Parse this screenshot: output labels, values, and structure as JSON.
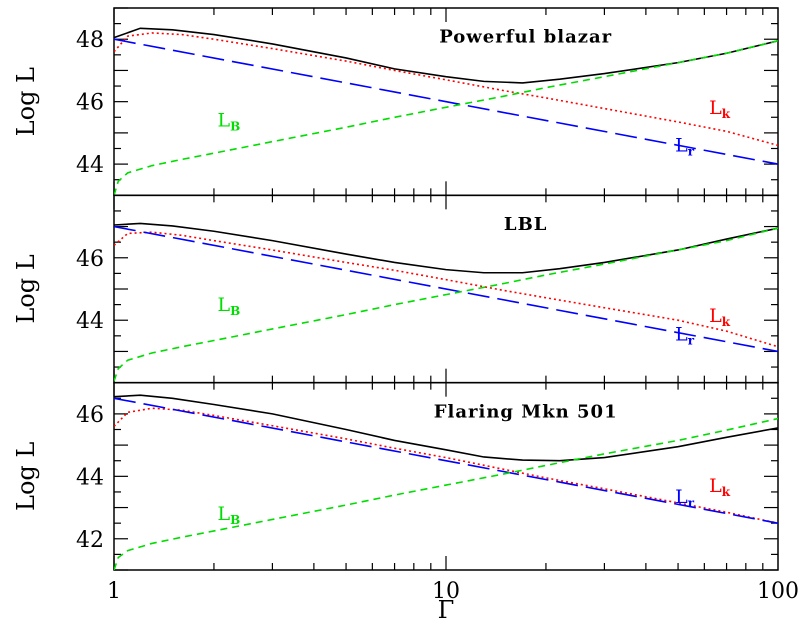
{
  "chart_data": {
    "type": "line",
    "xlabel": "Γ",
    "x_scale": "log",
    "xlim": [
      1,
      100
    ],
    "x_ticks": [
      {
        "value": 1,
        "label": "1"
      },
      {
        "value": 10,
        "label": "10"
      },
      {
        "value": 100,
        "label": "100"
      }
    ],
    "panels": [
      {
        "title": "Powerful blazar",
        "ylabel": "Log L",
        "ylim": [
          43.0,
          49.0
        ],
        "y_ticks": [
          {
            "value": 44,
            "label": "44"
          },
          {
            "value": 46,
            "label": "46"
          },
          {
            "value": 48,
            "label": "48"
          }
        ],
        "series": [
          {
            "key": "total",
            "color": "#000000",
            "dash": "",
            "points": [
              [
                1,
                48.05
              ],
              [
                1.2,
                48.35
              ],
              [
                1.5,
                48.3
              ],
              [
                2,
                48.15
              ],
              [
                3,
                47.85
              ],
              [
                5,
                47.4
              ],
              [
                7,
                47.05
              ],
              [
                10,
                46.8
              ],
              [
                13,
                46.65
              ],
              [
                17,
                46.6
              ],
              [
                22,
                46.72
              ],
              [
                30,
                46.9
              ],
              [
                50,
                47.25
              ],
              [
                70,
                47.55
              ],
              [
                100,
                47.95
              ]
            ]
          },
          {
            "key": "L_k",
            "label": "L",
            "subscript": "k",
            "color": "#ff0000",
            "dash": "2,3",
            "points": [
              [
                1,
                47.6
              ],
              [
                1.1,
                48.1
              ],
              [
                1.3,
                48.2
              ],
              [
                1.6,
                48.15
              ],
              [
                2,
                48.0
              ],
              [
                3,
                47.7
              ],
              [
                5,
                47.3
              ],
              [
                7,
                47.0
              ],
              [
                10,
                46.7
              ],
              [
                15,
                46.35
              ],
              [
                20,
                46.12
              ],
              [
                30,
                45.78
              ],
              [
                50,
                45.35
              ],
              [
                70,
                45.05
              ],
              [
                100,
                44.6
              ]
            ]
          },
          {
            "key": "L_r",
            "label": "L",
            "subscript": "r",
            "color": "#0000ff",
            "dash": "22,8",
            "points": [
              [
                1,
                48.0
              ],
              [
                100,
                44.0
              ]
            ]
          },
          {
            "key": "L_B",
            "label": "L",
            "subscript": "B",
            "color": "#00dd00",
            "dash": "7,5",
            "points": [
              [
                1,
                43.0
              ],
              [
                1.03,
                43.45
              ],
              [
                1.1,
                43.72
              ],
              [
                1.3,
                43.95
              ],
              [
                1.6,
                44.15
              ],
              [
                2,
                44.35
              ],
              [
                3,
                44.72
              ],
              [
                5,
                45.18
              ],
              [
                7,
                45.5
              ],
              [
                10,
                45.82
              ],
              [
                15,
                46.18
              ],
              [
                20,
                46.45
              ],
              [
                30,
                46.8
              ],
              [
                50,
                47.25
              ],
              [
                70,
                47.55
              ],
              [
                100,
                47.95
              ]
            ]
          }
        ],
        "labels": [
          {
            "key": "L_B",
            "x": 2.05,
            "y": 45.2
          },
          {
            "key": "L_k",
            "x": 62,
            "y": 45.6
          },
          {
            "key": "L_r",
            "x": 49,
            "y": 44.4
          }
        ]
      },
      {
        "title": "LBL",
        "ylabel": "Log L",
        "ylim": [
          42.0,
          48.0
        ],
        "y_ticks": [
          {
            "value": 44,
            "label": "44"
          },
          {
            "value": 46,
            "label": "46"
          }
        ],
        "series": [
          {
            "key": "total",
            "color": "#000000",
            "dash": "",
            "points": [
              [
                1,
                47.05
              ],
              [
                1.2,
                47.1
              ],
              [
                1.5,
                47.02
              ],
              [
                2,
                46.85
              ],
              [
                3,
                46.55
              ],
              [
                5,
                46.12
              ],
              [
                7,
                45.85
              ],
              [
                10,
                45.62
              ],
              [
                13,
                45.52
              ],
              [
                17,
                45.52
              ],
              [
                22,
                45.65
              ],
              [
                30,
                45.85
              ],
              [
                50,
                46.25
              ],
              [
                70,
                46.6
              ],
              [
                100,
                46.95
              ]
            ]
          },
          {
            "key": "L_k",
            "label": "L",
            "subscript": "k",
            "color": "#ff0000",
            "dash": "2,3",
            "points": [
              [
                1,
                46.4
              ],
              [
                1.1,
                46.78
              ],
              [
                1.3,
                46.82
              ],
              [
                1.6,
                46.72
              ],
              [
                2,
                46.55
              ],
              [
                3,
                46.25
              ],
              [
                5,
                45.85
              ],
              [
                7,
                45.6
              ],
              [
                10,
                45.3
              ],
              [
                15,
                44.95
              ],
              [
                20,
                44.72
              ],
              [
                30,
                44.4
              ],
              [
                50,
                44.0
              ],
              [
                70,
                43.65
              ],
              [
                100,
                43.15
              ]
            ]
          },
          {
            "key": "L_r",
            "label": "L",
            "subscript": "r",
            "color": "#0000ff",
            "dash": "22,8",
            "points": [
              [
                1,
                47.0
              ],
              [
                100,
                43.0
              ]
            ]
          },
          {
            "key": "L_B",
            "label": "L",
            "subscript": "B",
            "color": "#00dd00",
            "dash": "7,5",
            "points": [
              [
                1,
                42.05
              ],
              [
                1.03,
                42.45
              ],
              [
                1.1,
                42.72
              ],
              [
                1.3,
                42.95
              ],
              [
                1.6,
                43.15
              ],
              [
                2,
                43.35
              ],
              [
                3,
                43.72
              ],
              [
                5,
                44.18
              ],
              [
                7,
                44.5
              ],
              [
                10,
                44.82
              ],
              [
                15,
                45.18
              ],
              [
                20,
                45.45
              ],
              [
                30,
                45.8
              ],
              [
                50,
                46.25
              ],
              [
                70,
                46.55
              ],
              [
                100,
                46.95
              ]
            ]
          }
        ],
        "labels": [
          {
            "key": "L_B",
            "x": 2.05,
            "y": 44.3
          },
          {
            "key": "L_k",
            "x": 62,
            "y": 43.95
          },
          {
            "key": "L_r",
            "x": 49,
            "y": 43.35
          }
        ]
      },
      {
        "title": "Flaring Mkn 501",
        "ylabel": "Log L",
        "ylim": [
          41.0,
          47.0
        ],
        "y_ticks": [
          {
            "value": 42,
            "label": "42"
          },
          {
            "value": 44,
            "label": "44"
          },
          {
            "value": 46,
            "label": "46"
          }
        ],
        "series": [
          {
            "key": "total",
            "color": "#000000",
            "dash": "",
            "points": [
              [
                1,
                46.55
              ],
              [
                1.2,
                46.6
              ],
              [
                1.5,
                46.5
              ],
              [
                2,
                46.3
              ],
              [
                3,
                46.0
              ],
              [
                5,
                45.5
              ],
              [
                7,
                45.15
              ],
              [
                10,
                44.85
              ],
              [
                13,
                44.62
              ],
              [
                17,
                44.52
              ],
              [
                22,
                44.5
              ],
              [
                30,
                44.6
              ],
              [
                50,
                44.95
              ],
              [
                70,
                45.25
              ],
              [
                100,
                45.55
              ]
            ]
          },
          {
            "key": "L_k",
            "label": "L",
            "subscript": "k",
            "color": "#ff0000",
            "dash": "2,3",
            "points": [
              [
                1,
                45.6
              ],
              [
                1.1,
                46.05
              ],
              [
                1.3,
                46.18
              ],
              [
                1.6,
                46.12
              ],
              [
                2,
                45.95
              ],
              [
                3,
                45.62
              ],
              [
                5,
                45.2
              ],
              [
                7,
                44.9
              ],
              [
                10,
                44.6
              ],
              [
                15,
                44.22
              ],
              [
                20,
                43.95
              ],
              [
                30,
                43.6
              ],
              [
                50,
                43.15
              ],
              [
                70,
                42.85
              ],
              [
                100,
                42.5
              ]
            ]
          },
          {
            "key": "L_r",
            "label": "L",
            "subscript": "r",
            "color": "#0000ff",
            "dash": "22,8",
            "points": [
              [
                1,
                46.5
              ],
              [
                100,
                42.5
              ]
            ]
          },
          {
            "key": "L_B",
            "label": "L",
            "subscript": "B",
            "color": "#00dd00",
            "dash": "7,5",
            "points": [
              [
                1,
                41.0
              ],
              [
                1.03,
                41.4
              ],
              [
                1.1,
                41.62
              ],
              [
                1.3,
                41.85
              ],
              [
                1.6,
                42.05
              ],
              [
                2,
                42.25
              ],
              [
                3,
                42.62
              ],
              [
                5,
                43.08
              ],
              [
                7,
                43.4
              ],
              [
                10,
                43.72
              ],
              [
                15,
                44.08
              ],
              [
                20,
                44.35
              ],
              [
                30,
                44.72
              ],
              [
                50,
                45.15
              ],
              [
                70,
                45.48
              ],
              [
                100,
                45.85
              ]
            ]
          }
        ],
        "labels": [
          {
            "key": "L_B",
            "x": 2.05,
            "y": 42.6
          },
          {
            "key": "L_k",
            "x": 62,
            "y": 43.5
          },
          {
            "key": "L_r",
            "x": 49,
            "y": 43.15
          }
        ]
      }
    ]
  }
}
